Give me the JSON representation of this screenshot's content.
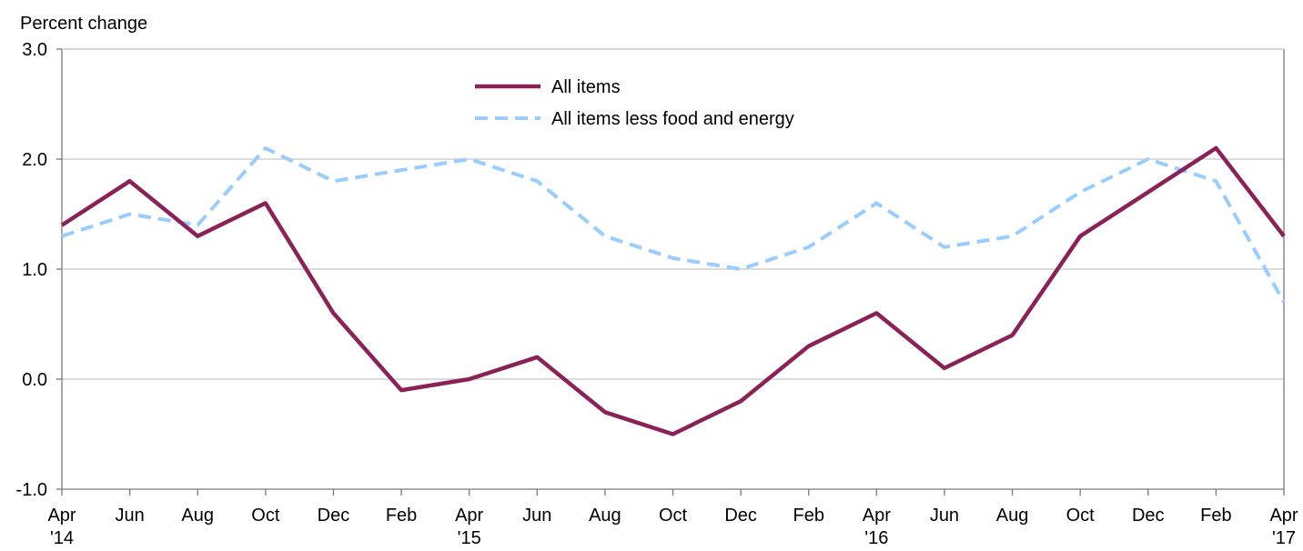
{
  "chart_data": {
    "type": "line",
    "ylabel": "Percent change",
    "ylim": [
      -1.0,
      3.0
    ],
    "yticks": [
      "-1.0",
      "0.0",
      "1.0",
      "2.0",
      "3.0"
    ],
    "x": [
      {
        "month": "Apr",
        "year": "'14"
      },
      {
        "month": "Jun",
        "year": ""
      },
      {
        "month": "Aug",
        "year": ""
      },
      {
        "month": "Oct",
        "year": ""
      },
      {
        "month": "Dec",
        "year": ""
      },
      {
        "month": "Feb",
        "year": ""
      },
      {
        "month": "Apr",
        "year": "'15"
      },
      {
        "month": "Jun",
        "year": ""
      },
      {
        "month": "Aug",
        "year": ""
      },
      {
        "month": "Oct",
        "year": ""
      },
      {
        "month": "Dec",
        "year": ""
      },
      {
        "month": "Feb",
        "year": ""
      },
      {
        "month": "Apr",
        "year": "'16"
      },
      {
        "month": "Jun",
        "year": ""
      },
      {
        "month": "Aug",
        "year": ""
      },
      {
        "month": "Oct",
        "year": ""
      },
      {
        "month": "Dec",
        "year": ""
      },
      {
        "month": "Feb",
        "year": ""
      },
      {
        "month": "Apr",
        "year": "'17"
      }
    ],
    "series": [
      {
        "name": "All items",
        "color": "#8B2257",
        "style": "solid",
        "values": [
          1.4,
          1.8,
          1.3,
          1.6,
          0.6,
          -0.1,
          0.0,
          0.2,
          -0.3,
          -0.5,
          -0.2,
          0.3,
          0.6,
          0.1,
          0.4,
          1.3,
          1.7,
          2.1,
          1.3
        ]
      },
      {
        "name": "All items less food and energy",
        "color": "#99CCFF",
        "style": "dashed",
        "values": [
          1.3,
          1.5,
          1.4,
          2.1,
          1.8,
          1.9,
          2.0,
          1.8,
          1.3,
          1.1,
          1.0,
          1.2,
          1.6,
          1.2,
          1.3,
          1.7,
          2.0,
          1.8,
          0.7
        ]
      }
    ],
    "grid": true,
    "legend_position": "top-center"
  }
}
